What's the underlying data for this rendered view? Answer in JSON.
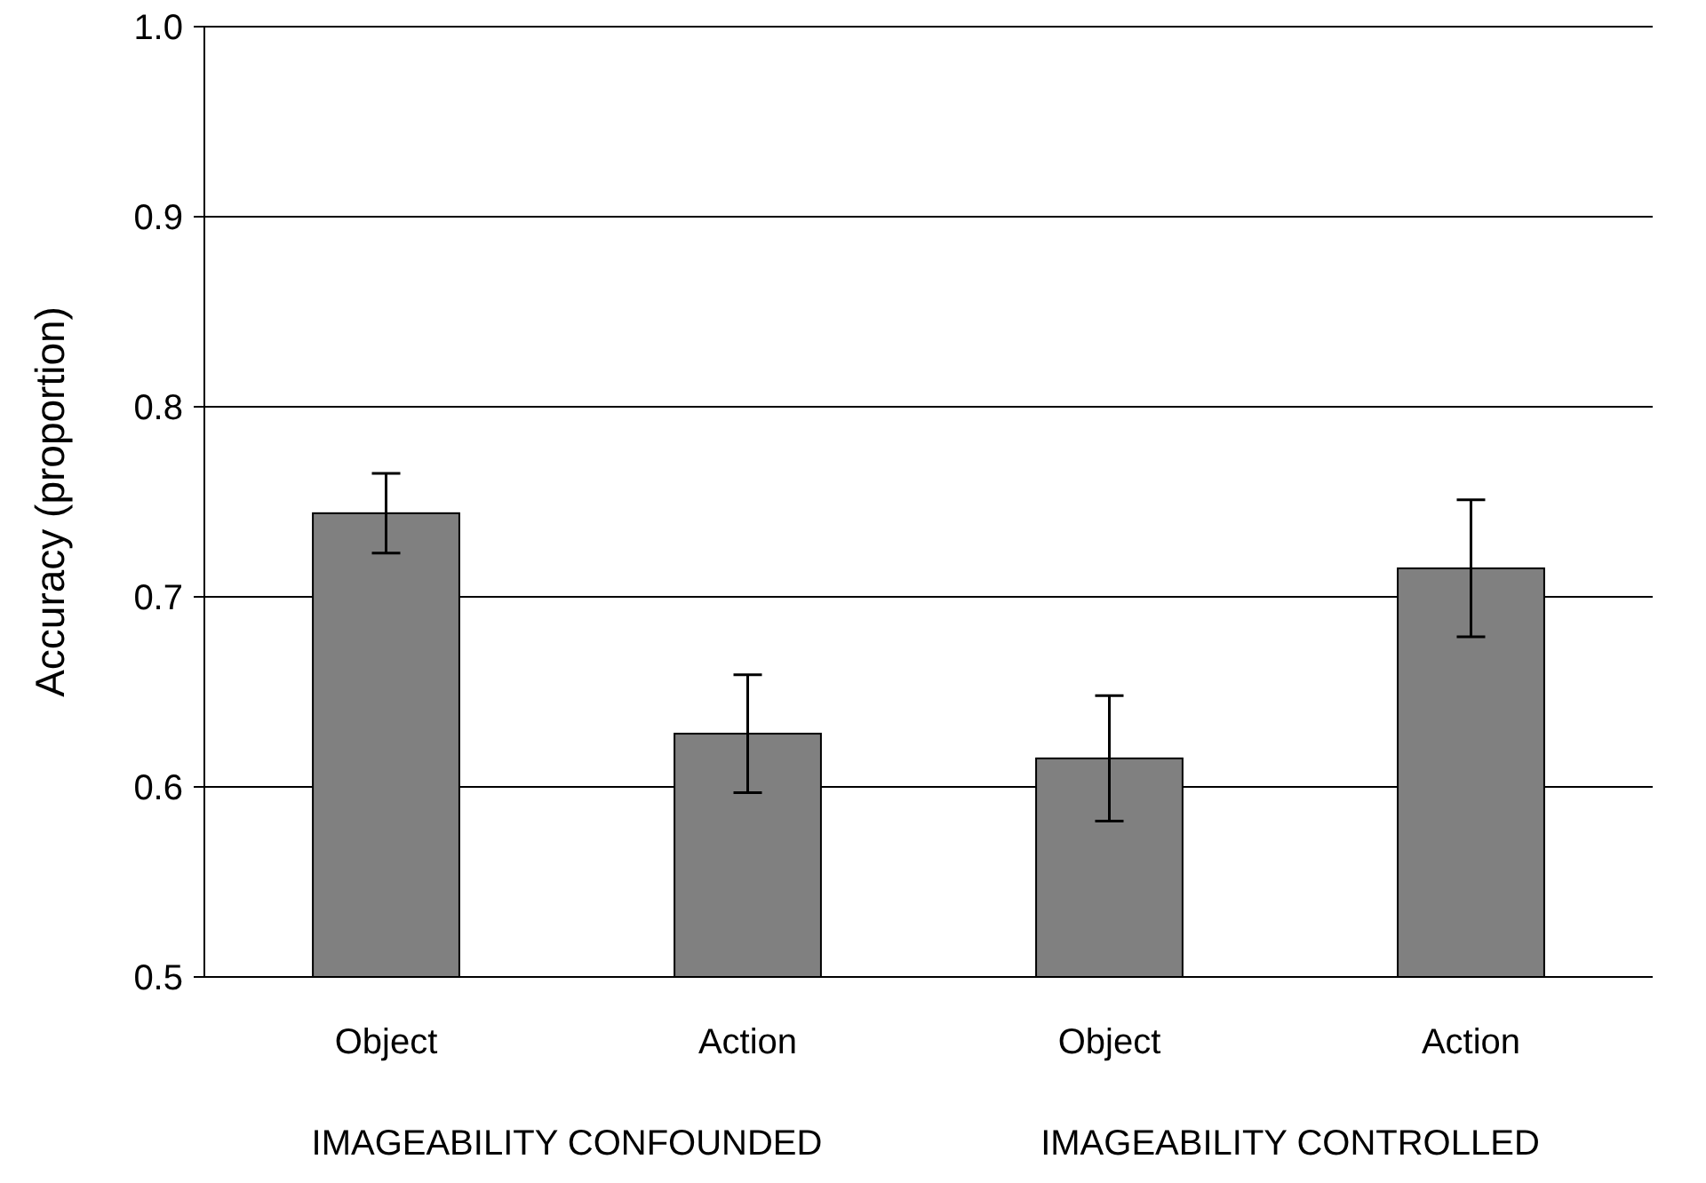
{
  "chart_data": {
    "type": "bar",
    "ylabel": "Accuracy (proportion)",
    "categories": [
      "Object",
      "Action",
      "Object",
      "Action"
    ],
    "values": [
      0.744,
      0.628,
      0.615,
      0.715
    ],
    "errors": [
      0.021,
      0.031,
      0.033,
      0.036
    ],
    "color": "#808080",
    "ylim": [
      0.5,
      1
    ],
    "yticks": [
      0.5,
      0.6,
      0.7,
      0.8,
      0.9,
      {
        "value": 1,
        "label": "1.0"
      }
    ],
    "grid": "y",
    "annotations": [
      "IMAGEABILITY CONFOUNDED",
      "IMAGEABILITY CONTROLLED"
    ]
  }
}
